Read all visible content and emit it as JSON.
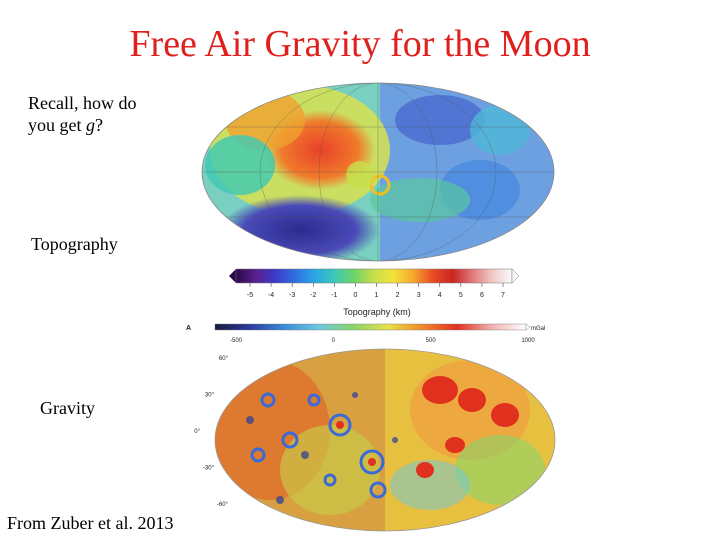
{
  "slide": {
    "title": "Free Air Gravity for the Moon",
    "note_line1": "Recall, how do",
    "note_line2_prefix": "you get ",
    "note_line2_var": "g",
    "note_line2_suffix": "?",
    "topography_label": "Topography",
    "gravity_label": "Gravity",
    "citation": "From Zuber et al. 2013"
  },
  "topo_colorbar": {
    "ticks": [
      "-5",
      "-4",
      "-3",
      "-2",
      "-1",
      "0",
      "1",
      "2",
      "3",
      "4",
      "5",
      "6",
      "7"
    ],
    "label": "Topography (km)",
    "colors": [
      "#2a0a4a",
      "#5a1e8c",
      "#3a3cc8",
      "#2f6fe0",
      "#2ba6e8",
      "#3cc8b4",
      "#6fd36a",
      "#c8e04a",
      "#f3e23a",
      "#f7a62e",
      "#e84a26",
      "#c8261e",
      "#e07a7a",
      "#f0c8c8",
      "#fafafa"
    ]
  },
  "gravity_colorbar": {
    "panel_letter": "A",
    "ticks": [
      "-500",
      "0",
      "500",
      "1000"
    ],
    "unit": "mGal",
    "colors": [
      "#1a1a3c",
      "#2a3a9c",
      "#3a8ad8",
      "#6cc8e0",
      "#8ad46a",
      "#e8e04a",
      "#f08a2a",
      "#e0301e",
      "#f2b0b0",
      "#ffffff"
    ]
  },
  "gravity_latitudes": [
    "60°",
    "30°",
    "0°",
    "-30°",
    "-60°"
  ]
}
